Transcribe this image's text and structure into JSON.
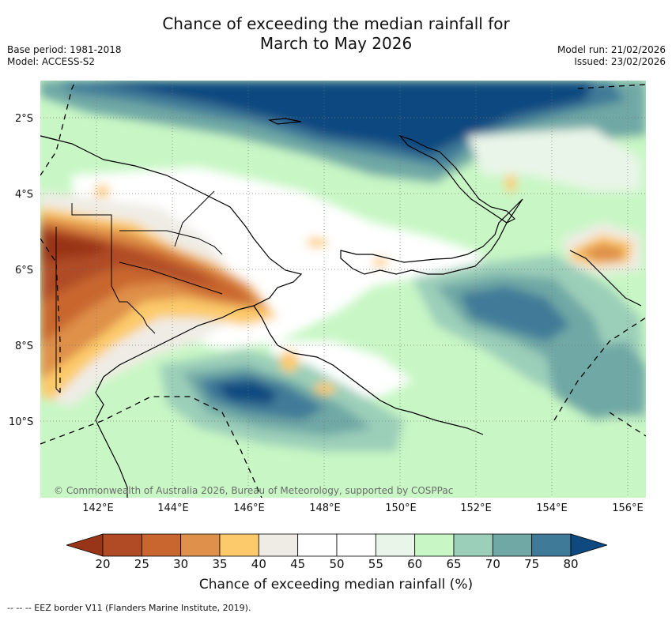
{
  "title": {
    "line1": "Chance of exceeding the median rainfall for",
    "line2": "March to May 2026"
  },
  "meta": {
    "base_period": "Base period: 1981-2018",
    "model": "Model: ACCESS-S2",
    "model_run": "Model run: 21/02/2026",
    "issued": "Issued: 23/02/2026"
  },
  "map": {
    "lat_labels": [
      "2°S",
      "4°S",
      "6°S",
      "8°S",
      "10°S"
    ],
    "lon_labels": [
      "142°E",
      "144°E",
      "146°E",
      "148°E",
      "150°E",
      "152°E",
      "154°E",
      "156°E"
    ],
    "copyright": "© Commonwealth of Australia 2026, Bureau of Meteorology, supported by COSPPac"
  },
  "colorbar": {
    "ticks": [
      "20",
      "25",
      "30",
      "35",
      "40",
      "45",
      "50",
      "55",
      "60",
      "65",
      "70",
      "75",
      "80"
    ],
    "colors": [
      "#983518",
      "#b04b25",
      "#c9662f",
      "#df904a",
      "#fdca6b",
      "#efece5",
      "#ffffff",
      "#ffffff",
      "#e9f5e8",
      "#c8f7c5",
      "#9ccfb9",
      "#6fa8a5",
      "#3f7a98",
      "#0e4a80"
    ],
    "label": "Chance of exceeding median rainfall (%)"
  },
  "legend": {
    "eez": "--  --  -- EEZ border V11 (Flanders Marine Institute, 2019)."
  }
}
